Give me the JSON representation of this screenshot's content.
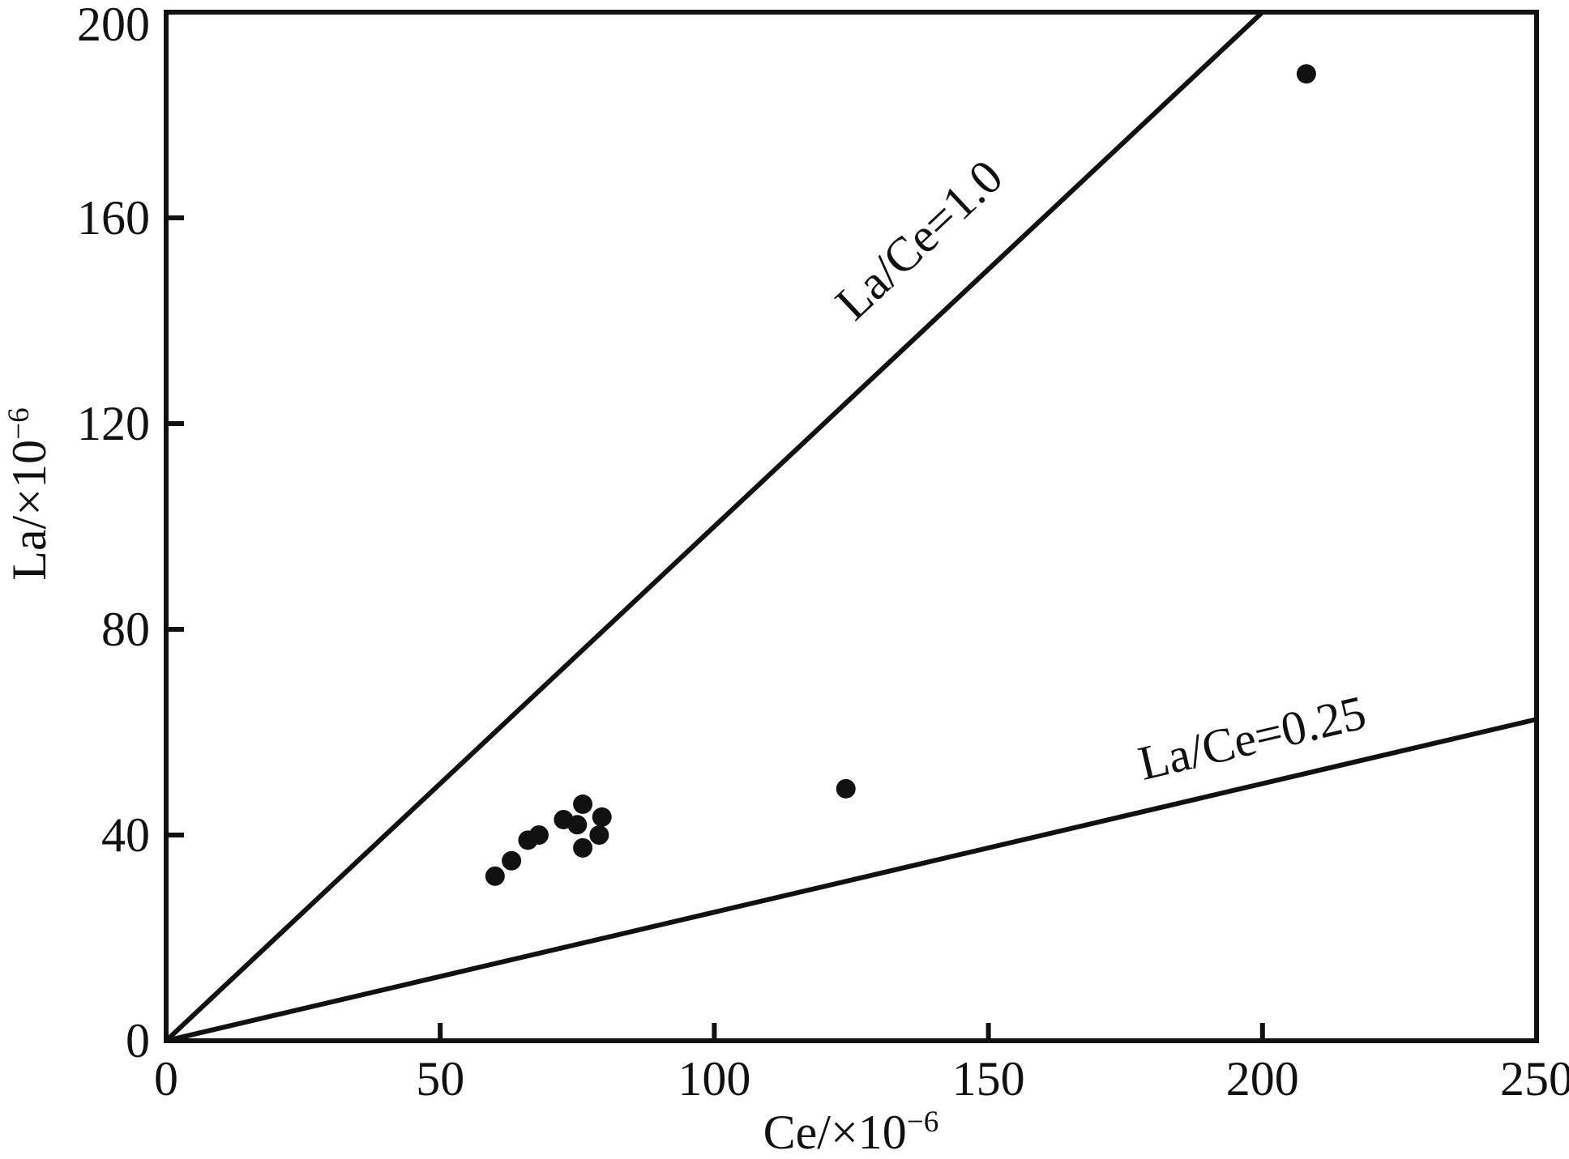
{
  "chart_data": {
    "type": "scatter",
    "title": "",
    "xlabel_prefix": "Ce/×10",
    "xlabel_sup": "−6",
    "ylabel_prefix": "La/×10",
    "ylabel_sup": "−6",
    "xlim": [
      0,
      250
    ],
    "ylim": [
      0,
      200
    ],
    "x_ticks": [
      0,
      50,
      100,
      150,
      200,
      250
    ],
    "y_ticks": [
      0,
      40,
      80,
      120,
      160,
      200
    ],
    "grid": false,
    "legend": "none",
    "marker": {
      "shape": "circle",
      "color": "#111111",
      "radius_px": 12
    },
    "axis_color": "#111111",
    "background_color": "#ffffff",
    "points": [
      [
        60,
        32
      ],
      [
        63,
        35
      ],
      [
        66,
        39
      ],
      [
        68,
        40
      ],
      [
        72.5,
        43
      ],
      [
        75,
        42
      ],
      [
        76,
        46
      ],
      [
        76,
        37.5
      ],
      [
        79,
        40
      ],
      [
        79.5,
        43.5
      ],
      [
        124,
        49
      ],
      [
        208,
        188
      ]
    ],
    "ref_lines": [
      {
        "label": "La/Ce=1.0",
        "slope": 1.0,
        "from": [
          0,
          0
        ]
      },
      {
        "label": "La/Ce=0.25",
        "slope": 0.25,
        "from": [
          0,
          0
        ]
      }
    ]
  }
}
